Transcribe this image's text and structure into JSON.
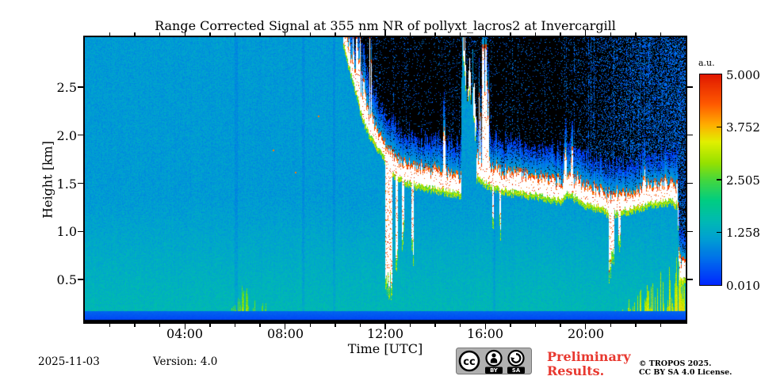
{
  "colors": {
    "background": "#ffffff",
    "axis": "#000000",
    "preliminary_red": "#e8382f",
    "cc_badge_gray": "#b0b0b0"
  },
  "footer": {
    "date": "2025-11-03",
    "version_label": "Version: 4.0",
    "preliminary_lines": [
      "Preliminary",
      "Results."
    ],
    "copyright_line1": "© TROPOS 2025.",
    "copyright_line2": "CC BY SA 4.0 License.",
    "cc_badge": {
      "cc": "cc",
      "by": "BY",
      "sa": "SA"
    }
  },
  "chart_data": {
    "type": "heatmap",
    "title": "Range Corrected Signal at 355 nm NR of pollyxt_lacros2 at Invercargill",
    "xlabel": "Time [UTC]",
    "ylabel": "Height [km]",
    "x_range_hours": [
      0,
      24
    ],
    "y_range_km": [
      0.05,
      3.02
    ],
    "x_major_tick_hours": [
      4,
      8,
      12,
      16,
      20
    ],
    "x_major_ticks": [
      "04:00",
      "08:00",
      "12:00",
      "16:00",
      "20:00"
    ],
    "x_minor_tick_interval_hours": 1,
    "y_tick_values": [
      2.5,
      2.0,
      1.5,
      1.0,
      0.5
    ],
    "y_tick_labels": [
      "2.5",
      "2.0",
      "1.5",
      "1.0",
      "0.5"
    ],
    "grid": false,
    "colorbar": {
      "label": "a.u.",
      "min": 0.01,
      "max": 5.0,
      "ticks": [
        "5.000",
        "3.752",
        "2.505",
        "1.258",
        "0.010"
      ],
      "colormap_stops": [
        [
          0.0,
          [
            0,
            40,
            255
          ]
        ],
        [
          0.12,
          [
            0,
            110,
            235
          ]
        ],
        [
          0.22,
          [
            0,
            160,
            210
          ]
        ],
        [
          0.3,
          [
            0,
            185,
            180
          ]
        ],
        [
          0.4,
          [
            0,
            205,
            130
          ]
        ],
        [
          0.5,
          [
            70,
            215,
            60
          ]
        ],
        [
          0.58,
          [
            150,
            225,
            0
          ]
        ],
        [
          0.68,
          [
            225,
            240,
            0
          ]
        ],
        [
          0.76,
          [
            255,
            175,
            0
          ]
        ],
        [
          0.86,
          [
            255,
            90,
            0
          ]
        ],
        [
          1.0,
          [
            225,
            25,
            0
          ]
        ]
      ]
    },
    "features": {
      "background": {
        "base_au": 1.06,
        "surface_boost_au": 0.48,
        "boost_below_km": 1.35,
        "noise_au": 0.42
      },
      "overlap": {
        "black_top_km": 0.088,
        "blue_top_km": 0.175
      },
      "cloud": {
        "onset_hour": 10.33,
        "base_series": [
          [
            10.33,
            2.98
          ],
          [
            10.5,
            2.78
          ],
          [
            10.8,
            2.5
          ],
          [
            11.0,
            2.28
          ],
          [
            11.3,
            2.06
          ],
          [
            11.6,
            1.92
          ],
          [
            11.9,
            1.82
          ],
          [
            12.1,
            1.7
          ],
          [
            12.3,
            1.62
          ],
          [
            12.6,
            1.56
          ],
          [
            13.0,
            1.52
          ],
          [
            13.5,
            1.48
          ],
          [
            14.0,
            1.46
          ],
          [
            14.5,
            1.43
          ],
          [
            15.0,
            1.4
          ],
          [
            15.7,
            1.58
          ],
          [
            16.0,
            1.52
          ],
          [
            16.5,
            1.46
          ],
          [
            17.0,
            1.43
          ],
          [
            17.5,
            1.41
          ],
          [
            18.0,
            1.39
          ],
          [
            18.5,
            1.36
          ],
          [
            19.0,
            1.34
          ],
          [
            19.3,
            1.42
          ],
          [
            19.5,
            1.38
          ],
          [
            20.0,
            1.3
          ],
          [
            20.5,
            1.27
          ],
          [
            21.0,
            1.2
          ],
          [
            21.5,
            1.23
          ],
          [
            22.0,
            1.26
          ],
          [
            22.5,
            1.3
          ],
          [
            23.0,
            1.32
          ],
          [
            23.4,
            1.34
          ],
          [
            23.68,
            1.3
          ],
          [
            23.74,
            0.6
          ],
          [
            23.85,
            0.5
          ],
          [
            24.0,
            0.55
          ]
        ],
        "thickness_km_range": [
          0.14,
          0.26
        ],
        "towers": [
          [
            10.45,
            2.9
          ],
          [
            10.7,
            2.85
          ],
          [
            10.95,
            2.75
          ],
          [
            11.15,
            2.55
          ],
          [
            14.35,
            2.1
          ],
          [
            15.9,
            2.8
          ],
          [
            16.05,
            2.55
          ],
          [
            19.2,
            1.85
          ],
          [
            19.45,
            1.8
          ],
          [
            22.35,
            1.65
          ]
        ],
        "gaps": [
          [
            15.05,
            15.65
          ]
        ],
        "gap_high_cloud": {
          "base_start_km": 2.85,
          "descent_km_per_h": 1.4,
          "thickness_km_range": [
            0.08,
            0.38
          ],
          "fraction": 0.6
        },
        "virga": [
          {
            "t": 12.15,
            "w": 0.3,
            "bottom_km": 0.38
          },
          {
            "t": 12.45,
            "w": 0.1,
            "bottom_km": 0.7
          },
          {
            "t": 12.7,
            "w": 0.1,
            "bottom_km": 0.9
          },
          {
            "t": 13.1,
            "w": 0.08,
            "bottom_km": 0.75
          },
          {
            "t": 16.3,
            "w": 0.07,
            "bottom_km": 0.95
          },
          {
            "t": 16.6,
            "w": 0.07,
            "bottom_km": 1.0
          },
          {
            "t": 21.05,
            "w": 0.22,
            "bottom_km": 0.58
          },
          {
            "t": 21.35,
            "w": 0.08,
            "bottom_km": 0.8
          },
          {
            "t": 23.85,
            "w": 0.2,
            "bottom_km": 0.42
          }
        ]
      },
      "surface_plumes": [
        {
          "t0": 5.35,
          "t1": 7.6,
          "max_h_km": 0.45,
          "value_au": 2.2,
          "shape": "sin"
        },
        {
          "t0": 19.9,
          "t1": 23.97,
          "max_h_km": 0.85,
          "value_au": 2.6,
          "shape": "ramp"
        }
      ],
      "dim_columns_hours": [
        6.05,
        8.72,
        9.95,
        16.35
      ],
      "noise_speckle": {
        "base_density": 0.06,
        "growth_per_hour_after_19": 0.095,
        "dense_after_hour": 23.7,
        "dense_density": 0.5
      },
      "bright_dots": [
        [
          7.5,
          1.85
        ],
        [
          8.4,
          1.62
        ],
        [
          9.3,
          2.2
        ]
      ]
    }
  }
}
